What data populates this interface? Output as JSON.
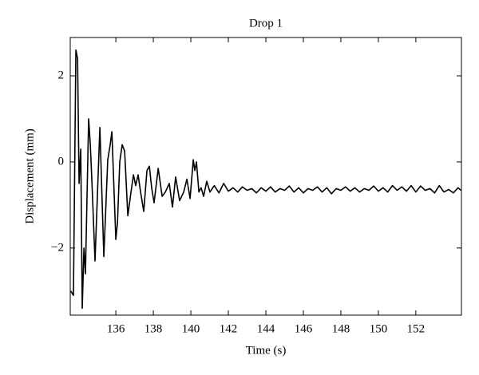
{
  "chart_data": {
    "type": "line",
    "title": "Drop 1",
    "xlabel": "Time (s)",
    "ylabel": "Displacement (mm)",
    "color": "#000000",
    "x": [
      133.6,
      133.74,
      133.87,
      133.96,
      134.04,
      134.13,
      134.21,
      134.3,
      134.38,
      134.55,
      134.64,
      134.72,
      134.89,
      135.15,
      135.36,
      135.57,
      135.7,
      135.79,
      136.0,
      136.09,
      136.21,
      136.34,
      136.47,
      136.64,
      136.81,
      136.94,
      137.06,
      137.19,
      137.32,
      137.49,
      137.66,
      137.79,
      137.91,
      138.04,
      138.26,
      138.47,
      138.64,
      138.85,
      139.02,
      139.19,
      139.4,
      139.62,
      139.79,
      139.96,
      140.13,
      140.21,
      140.3,
      140.43,
      140.55,
      140.68,
      140.85,
      141.02,
      141.25,
      141.5,
      141.75,
      142,
      142.25,
      142.5,
      142.75,
      143,
      143.25,
      143.5,
      143.75,
      144,
      144.25,
      144.5,
      144.75,
      145,
      145.25,
      145.5,
      145.75,
      146,
      146.25,
      146.5,
      146.75,
      147,
      147.25,
      147.5,
      147.75,
      148,
      148.25,
      148.5,
      148.75,
      149,
      149.25,
      149.5,
      149.75,
      150,
      150.25,
      150.5,
      150.75,
      151,
      151.25,
      151.5,
      151.75,
      152,
      152.25,
      152.5,
      152.75,
      153,
      153.25,
      153.5,
      153.75,
      154,
      154.25,
      154.4
    ],
    "values": [
      -3.0,
      -3.1,
      2.6,
      2.4,
      -0.5,
      0.3,
      -3.4,
      -2.0,
      -2.6,
      1.0,
      0.4,
      -0.4,
      -2.3,
      0.8,
      -2.2,
      0.05,
      0.4,
      0.7,
      -1.8,
      -1.4,
      0,
      0.4,
      0.25,
      -1.25,
      -0.7,
      -0.3,
      -0.55,
      -0.3,
      -0.7,
      -1.15,
      -0.2,
      -0.1,
      -0.6,
      -0.95,
      -0.15,
      -0.8,
      -0.7,
      -0.5,
      -1.05,
      -0.35,
      -0.9,
      -0.7,
      -0.4,
      -0.85,
      0.05,
      -0.2,
      0,
      -0.7,
      -0.6,
      -0.8,
      -0.45,
      -0.7,
      -0.55,
      -0.72,
      -0.5,
      -0.68,
      -0.6,
      -0.7,
      -0.58,
      -0.66,
      -0.62,
      -0.72,
      -0.6,
      -0.68,
      -0.58,
      -0.7,
      -0.62,
      -0.66,
      -0.56,
      -0.7,
      -0.6,
      -0.72,
      -0.62,
      -0.66,
      -0.58,
      -0.7,
      -0.6,
      -0.74,
      -0.62,
      -0.66,
      -0.58,
      -0.68,
      -0.6,
      -0.7,
      -0.62,
      -0.66,
      -0.56,
      -0.68,
      -0.6,
      -0.7,
      -0.55,
      -0.66,
      -0.58,
      -0.68,
      -0.55,
      -0.7,
      -0.56,
      -0.66,
      -0.62,
      -0.72,
      -0.55,
      -0.7,
      -0.64,
      -0.72,
      -0.6,
      -0.66
    ],
    "xlim": [
      133.57,
      154.43
    ],
    "ylim": [
      -3.56,
      2.89
    ],
    "xticks": [
      136,
      138,
      140,
      142,
      144,
      146,
      148,
      150,
      152
    ],
    "yticks": [
      {
        "value": -2,
        "label": "−2"
      },
      0,
      2
    ]
  }
}
